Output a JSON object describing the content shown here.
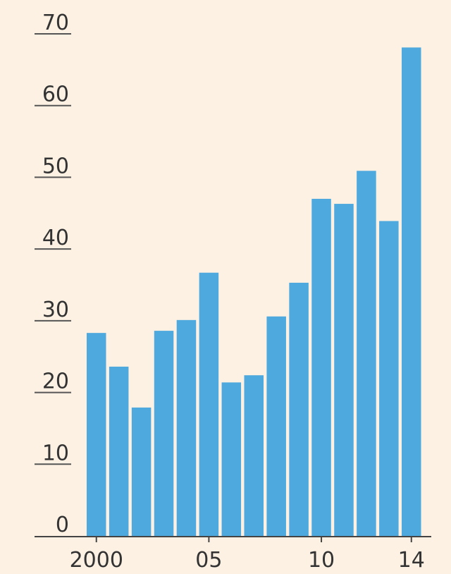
{
  "chart_data": {
    "type": "bar",
    "title": "",
    "xlabel": "",
    "ylabel": "",
    "categories": [
      "2000",
      "2001",
      "2002",
      "2003",
      "2004",
      "2005",
      "2006",
      "2007",
      "2008",
      "2009",
      "2010",
      "2011",
      "2012",
      "2013",
      "2014"
    ],
    "values": [
      28.3,
      23.6,
      17.9,
      28.6,
      30.1,
      36.7,
      21.4,
      22.4,
      30.6,
      35.3,
      47.0,
      46.3,
      50.9,
      43.9,
      68.1
    ],
    "ylim": [
      0,
      70
    ],
    "yticks": [
      "0",
      "10",
      "20",
      "30",
      "40",
      "50",
      "60",
      "70"
    ],
    "xtick_labels": [
      {
        "category": "2000",
        "label": "2000"
      },
      {
        "category": "2005",
        "label": "05"
      },
      {
        "category": "2010",
        "label": "10"
      },
      {
        "category": "2014",
        "label": "14"
      }
    ],
    "grid": false,
    "legend": "none",
    "bar_color": "#4ea9de",
    "background": "#fdf1e3"
  }
}
